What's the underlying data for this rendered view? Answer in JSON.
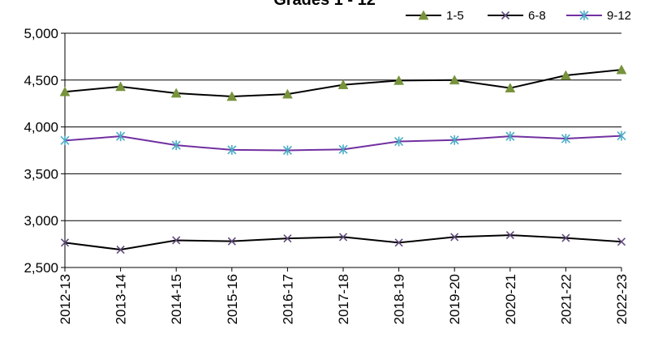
{
  "chart_data": {
    "type": "line",
    "title": "Grades 1 - 12",
    "xlabel": "",
    "ylabel": "",
    "ylim": [
      2500,
      5000
    ],
    "yticks": [
      "2,500",
      "3,000",
      "3,500",
      "4,000",
      "4,500",
      "5,000"
    ],
    "ytick_values": [
      2500,
      3000,
      3500,
      4000,
      4500,
      5000
    ],
    "grid": true,
    "legend_position": "top-right",
    "categories": [
      "2012-13",
      "2013-14",
      "2014-15",
      "2015-16",
      "2016-17",
      "2017-18",
      "2018-19",
      "2019-20",
      "2020-21",
      "2021-22",
      "2022-23"
    ],
    "series": [
      {
        "name": "1-5",
        "line_color": "#000000",
        "marker": "triangle",
        "marker_color": "#77933C",
        "values": [
          4375,
          4430,
          4360,
          4325,
          4350,
          4450,
          4495,
          4500,
          4415,
          4550,
          4610
        ]
      },
      {
        "name": "6-8",
        "line_color": "#000000",
        "marker": "x",
        "marker_color": "#604A7B",
        "values": [
          2765,
          2690,
          2790,
          2780,
          2810,
          2825,
          2765,
          2825,
          2845,
          2815,
          2775
        ]
      },
      {
        "name": "9-12",
        "line_color": "#7030A0",
        "marker": "star",
        "marker_color": "#4BACC6",
        "values": [
          3855,
          3900,
          3805,
          3755,
          3750,
          3760,
          3845,
          3860,
          3900,
          3875,
          3905
        ]
      }
    ]
  }
}
